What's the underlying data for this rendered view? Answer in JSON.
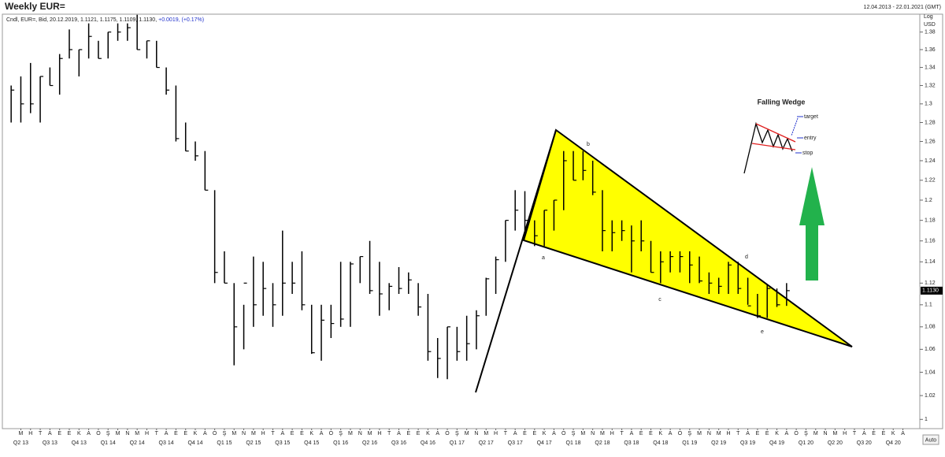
{
  "chart_data": {
    "type": "ohlc",
    "title": "Weekly EUR=",
    "date_range": "12.04.2013 - 22.01.2021 (GMT)",
    "info": "Cndl, EUR=, Bid, 20.12.2019, 1.1121, 1.1175, 1.1109, 1.1130,",
    "info_change": "+0.0019, (+0.17%)",
    "axis_scale_label": "Log",
    "axis_currency_label": "USD",
    "log_scale": true,
    "auto_button": "Auto",
    "last_price": {
      "value": 1.113,
      "label": "1.1130"
    },
    "annotations": [
      "a",
      "b",
      "c",
      "d",
      "e"
    ],
    "inset": {
      "title": "Falling Wedge",
      "labels": [
        "target",
        "entry",
        "stop"
      ]
    },
    "ylim": [
      0.993,
      1.397
    ],
    "yticks": [
      1,
      1.02,
      1.04,
      1.06,
      1.08,
      1.1,
      1.12,
      1.14,
      1.16,
      1.18,
      1.2,
      1.22,
      1.24,
      1.26,
      1.28,
      1.3,
      1.32,
      1.34,
      1.36,
      1.38
    ],
    "xlim": [
      "2013-04",
      "2021-01"
    ],
    "month_ticks": [
      {
        "value": "2013-05",
        "label": "M"
      },
      {
        "value": "2013-06",
        "label": "H"
      },
      {
        "value": "2013-07",
        "label": "T"
      },
      {
        "value": "2013-08",
        "label": "A"
      },
      {
        "value": "2013-09",
        "label": "E"
      },
      {
        "value": "2013-10",
        "label": "E"
      },
      {
        "value": "2013-11",
        "label": "K"
      },
      {
        "value": "2013-12",
        "label": "A"
      },
      {
        "value": "2014-01",
        "label": "O"
      },
      {
        "value": "2014-02",
        "label": "Ş"
      },
      {
        "value": "2014-03",
        "label": "M"
      },
      {
        "value": "2014-04",
        "label": "N"
      },
      {
        "value": "2014-05",
        "label": "M"
      },
      {
        "value": "2014-06",
        "label": "H"
      },
      {
        "value": "2014-07",
        "label": "T"
      },
      {
        "value": "2014-08",
        "label": "A"
      },
      {
        "value": "2014-09",
        "label": "E"
      },
      {
        "value": "2014-10",
        "label": "E"
      },
      {
        "value": "2014-11",
        "label": "K"
      },
      {
        "value": "2014-12",
        "label": "A"
      },
      {
        "value": "2015-01",
        "label": "O"
      },
      {
        "value": "2015-02",
        "label": "Ş"
      },
      {
        "value": "2015-03",
        "label": "M"
      },
      {
        "value": "2015-04",
        "label": "N"
      },
      {
        "value": "2015-05",
        "label": "M"
      },
      {
        "value": "2015-06",
        "label": "H"
      },
      {
        "value": "2015-07",
        "label": "T"
      },
      {
        "value": "2015-08",
        "label": "A"
      },
      {
        "value": "2015-09",
        "label": "E"
      },
      {
        "value": "2015-10",
        "label": "E"
      },
      {
        "value": "2015-11",
        "label": "K"
      },
      {
        "value": "2015-12",
        "label": "A"
      },
      {
        "value": "2016-01",
        "label": "O"
      },
      {
        "value": "2016-02",
        "label": "Ş"
      },
      {
        "value": "2016-03",
        "label": "M"
      },
      {
        "value": "2016-04",
        "label": "N"
      },
      {
        "value": "2016-05",
        "label": "M"
      },
      {
        "value": "2016-06",
        "label": "H"
      },
      {
        "value": "2016-07",
        "label": "T"
      },
      {
        "value": "2016-08",
        "label": "A"
      },
      {
        "value": "2016-09",
        "label": "E"
      },
      {
        "value": "2016-10",
        "label": "E"
      },
      {
        "value": "2016-11",
        "label": "K"
      },
      {
        "value": "2016-12",
        "label": "A"
      },
      {
        "value": "2017-01",
        "label": "O"
      },
      {
        "value": "2017-02",
        "label": "Ş"
      },
      {
        "value": "2017-03",
        "label": "M"
      },
      {
        "value": "2017-04",
        "label": "N"
      },
      {
        "value": "2017-05",
        "label": "M"
      },
      {
        "value": "2017-06",
        "label": "H"
      },
      {
        "value": "2017-07",
        "label": "T"
      },
      {
        "value": "2017-08",
        "label": "A"
      },
      {
        "value": "2017-09",
        "label": "E"
      },
      {
        "value": "2017-10",
        "label": "E"
      },
      {
        "value": "2017-11",
        "label": "K"
      },
      {
        "value": "2017-12",
        "label": "A"
      },
      {
        "value": "2018-01",
        "label": "O"
      },
      {
        "value": "2018-02",
        "label": "Ş"
      },
      {
        "value": "2018-03",
        "label": "M"
      },
      {
        "value": "2018-04",
        "label": "N"
      },
      {
        "value": "2018-05",
        "label": "M"
      },
      {
        "value": "2018-06",
        "label": "H"
      },
      {
        "value": "2018-07",
        "label": "T"
      },
      {
        "value": "2018-08",
        "label": "A"
      },
      {
        "value": "2018-09",
        "label": "E"
      },
      {
        "value": "2018-10",
        "label": "E"
      },
      {
        "value": "2018-11",
        "label": "K"
      },
      {
        "value": "2018-12",
        "label": "A"
      },
      {
        "value": "2019-01",
        "label": "O"
      },
      {
        "value": "2019-02",
        "label": "Ş"
      },
      {
        "value": "2019-03",
        "label": "M"
      },
      {
        "value": "2019-04",
        "label": "N"
      },
      {
        "value": "2019-05",
        "label": "M"
      },
      {
        "value": "2019-06",
        "label": "H"
      },
      {
        "value": "2019-07",
        "label": "T"
      },
      {
        "value": "2019-08",
        "label": "A"
      },
      {
        "value": "2019-09",
        "label": "E"
      },
      {
        "value": "2019-10",
        "label": "E"
      },
      {
        "value": "2019-11",
        "label": "K"
      },
      {
        "value": "2019-12",
        "label": "A"
      },
      {
        "value": "2020-01",
        "label": "O"
      },
      {
        "value": "2020-02",
        "label": "Ş"
      },
      {
        "value": "2020-03",
        "label": "M"
      },
      {
        "value": "2020-04",
        "label": "N"
      },
      {
        "value": "2020-05",
        "label": "M"
      },
      {
        "value": "2020-06",
        "label": "H"
      },
      {
        "value": "2020-07",
        "label": "T"
      },
      {
        "value": "2020-08",
        "label": "A"
      },
      {
        "value": "2020-09",
        "label": "E"
      },
      {
        "value": "2020-10",
        "label": "E"
      },
      {
        "value": "2020-11",
        "label": "K"
      },
      {
        "value": "2020-12",
        "label": "A"
      }
    ],
    "quarter_ticks": [
      {
        "value": "2013-05",
        "label": "Q2 13"
      },
      {
        "value": "2013-08",
        "label": "Q3 13"
      },
      {
        "value": "2013-11",
        "label": "Q4 13"
      },
      {
        "value": "2014-02",
        "label": "Q1 14"
      },
      {
        "value": "2014-05",
        "label": "Q2 14"
      },
      {
        "value": "2014-08",
        "label": "Q3 14"
      },
      {
        "value": "2014-11",
        "label": "Q4 14"
      },
      {
        "value": "2015-02",
        "label": "Q1 15"
      },
      {
        "value": "2015-05",
        "label": "Q2 15"
      },
      {
        "value": "2015-08",
        "label": "Q3 15"
      },
      {
        "value": "2015-11",
        "label": "Q4 15"
      },
      {
        "value": "2016-02",
        "label": "Q1 16"
      },
      {
        "value": "2016-05",
        "label": "Q2 16"
      },
      {
        "value": "2016-08",
        "label": "Q3 16"
      },
      {
        "value": "2016-11",
        "label": "Q4 16"
      },
      {
        "value": "2017-02",
        "label": "Q1 17"
      },
      {
        "value": "2017-05",
        "label": "Q2 17"
      },
      {
        "value": "2017-08",
        "label": "Q3 17"
      },
      {
        "value": "2017-11",
        "label": "Q4 17"
      },
      {
        "value": "2018-02",
        "label": "Q1 18"
      },
      {
        "value": "2018-05",
        "label": "Q2 18"
      },
      {
        "value": "2018-08",
        "label": "Q3 18"
      },
      {
        "value": "2018-11",
        "label": "Q4 18"
      },
      {
        "value": "2019-02",
        "label": "Q1 19"
      },
      {
        "value": "2019-05",
        "label": "Q2 19"
      },
      {
        "value": "2019-08",
        "label": "Q3 19"
      },
      {
        "value": "2019-11",
        "label": "Q4 19"
      },
      {
        "value": "2020-02",
        "label": "Q1 20"
      },
      {
        "value": "2020-05",
        "label": "Q2 20"
      },
      {
        "value": "2020-08",
        "label": "Q3 20"
      },
      {
        "value": "2020-11",
        "label": "Q4 20"
      }
    ],
    "series": [
      {
        "color": "#000000",
        "x": [
          "2013-04",
          "2013-05",
          "2013-06",
          "2013-07",
          "2013-08",
          "2013-09",
          "2013-10",
          "2013-11",
          "2013-12",
          "2014-01",
          "2014-02",
          "2014-03",
          "2014-04",
          "2014-05",
          "2014-06",
          "2014-07",
          "2014-08",
          "2014-09",
          "2014-10",
          "2014-11",
          "2014-12",
          "2015-01",
          "2015-02",
          "2015-03",
          "2015-04",
          "2015-05",
          "2015-06",
          "2015-07",
          "2015-08",
          "2015-09",
          "2015-10",
          "2015-11",
          "2015-12",
          "2016-01",
          "2016-02",
          "2016-03",
          "2016-04",
          "2016-05",
          "2016-06",
          "2016-07",
          "2016-08",
          "2016-09",
          "2016-10",
          "2016-11",
          "2016-12",
          "2017-01",
          "2017-02",
          "2017-03",
          "2017-04",
          "2017-05",
          "2017-06",
          "2017-07",
          "2017-08",
          "2017-09",
          "2017-10",
          "2017-11",
          "2017-12",
          "2018-01",
          "2018-02",
          "2018-03",
          "2018-04",
          "2018-05",
          "2018-06",
          "2018-07",
          "2018-08",
          "2018-09",
          "2018-10",
          "2018-11",
          "2018-12",
          "2019-01",
          "2019-02",
          "2019-03",
          "2019-04",
          "2019-05",
          "2019-06",
          "2019-07",
          "2019-08",
          "2019-09",
          "2019-10",
          "2019-11",
          "2019-12"
        ],
        "high": [
          1.32,
          1.33,
          1.345,
          1.33,
          1.34,
          1.355,
          1.383,
          1.36,
          1.39,
          1.37,
          1.38,
          1.39,
          1.39,
          1.4,
          1.37,
          1.37,
          1.34,
          1.32,
          1.28,
          1.26,
          1.25,
          1.21,
          1.15,
          1.12,
          1.1,
          1.145,
          1.14,
          1.12,
          1.17,
          1.14,
          1.15,
          1.1,
          1.1,
          1.1,
          1.14,
          1.14,
          1.145,
          1.16,
          1.14,
          1.12,
          1.135,
          1.13,
          1.12,
          1.11,
          1.07,
          1.08,
          1.08,
          1.09,
          1.095,
          1.125,
          1.145,
          1.18,
          1.21,
          1.209,
          1.18,
          1.19,
          1.2,
          1.25,
          1.25,
          1.25,
          1.24,
          1.21,
          1.18,
          1.18,
          1.175,
          1.18,
          1.16,
          1.15,
          1.15,
          1.15,
          1.15,
          1.145,
          1.13,
          1.125,
          1.14,
          1.14,
          1.125,
          1.11,
          1.118,
          1.115,
          1.12
        ],
        "low": [
          1.28,
          1.28,
          1.29,
          1.28,
          1.32,
          1.31,
          1.35,
          1.33,
          1.35,
          1.35,
          1.35,
          1.37,
          1.37,
          1.36,
          1.35,
          1.34,
          1.31,
          1.26,
          1.25,
          1.24,
          1.21,
          1.12,
          1.12,
          1.046,
          1.06,
          1.08,
          1.09,
          1.08,
          1.09,
          1.11,
          1.095,
          1.056,
          1.05,
          1.07,
          1.08,
          1.08,
          1.12,
          1.11,
          1.09,
          1.095,
          1.11,
          1.11,
          1.09,
          1.05,
          1.035,
          1.034,
          1.05,
          1.05,
          1.06,
          1.09,
          1.11,
          1.14,
          1.17,
          1.17,
          1.155,
          1.155,
          1.17,
          1.19,
          1.22,
          1.22,
          1.205,
          1.15,
          1.15,
          1.16,
          1.13,
          1.15,
          1.13,
          1.12,
          1.13,
          1.13,
          1.12,
          1.12,
          1.11,
          1.11,
          1.11,
          1.11,
          1.1,
          1.088,
          1.088,
          1.098,
          1.099
        ],
        "close": [
          1.315,
          1.3,
          1.3,
          1.33,
          1.32,
          1.35,
          1.36,
          1.36,
          1.375,
          1.35,
          1.38,
          1.38,
          1.385,
          1.36,
          1.37,
          1.34,
          1.315,
          1.263,
          1.25,
          1.245,
          1.21,
          1.13,
          1.12,
          1.08,
          1.12,
          1.1,
          1.115,
          1.1,
          1.12,
          1.12,
          1.1,
          1.057,
          1.086,
          1.083,
          1.087,
          1.138,
          1.145,
          1.113,
          1.11,
          1.117,
          1.115,
          1.123,
          1.098,
          1.058,
          1.052,
          1.08,
          1.058,
          1.065,
          1.09,
          1.124,
          1.142,
          1.18,
          1.19,
          1.18,
          1.165,
          1.19,
          1.2,
          1.24,
          1.22,
          1.23,
          1.208,
          1.17,
          1.168,
          1.17,
          1.16,
          1.16,
          1.13,
          1.14,
          1.145,
          1.145,
          1.137,
          1.122,
          1.12,
          1.117,
          1.137,
          1.115,
          1.099,
          1.09,
          1.115,
          1.1,
          1.113
        ]
      }
    ]
  }
}
